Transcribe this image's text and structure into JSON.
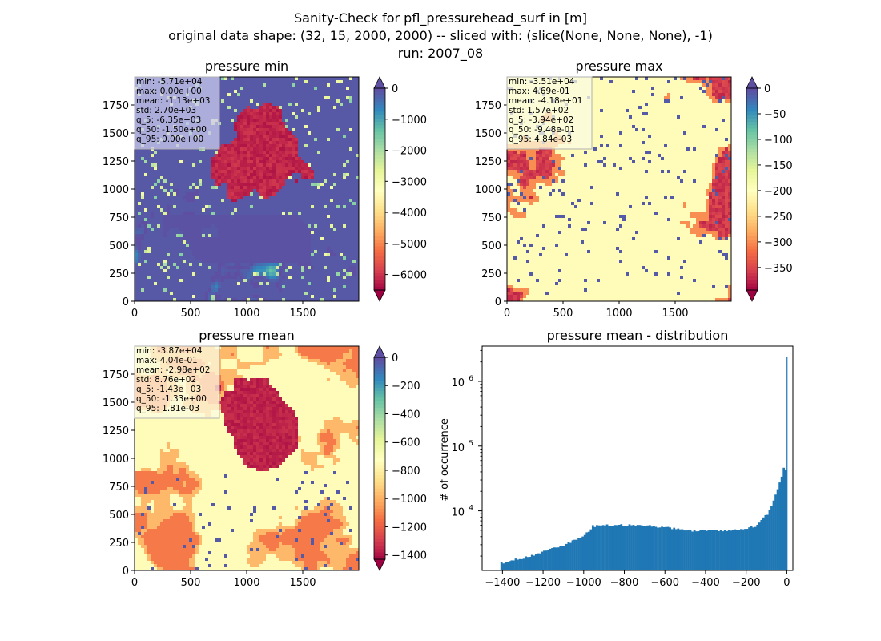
{
  "figure": {
    "suptitle": [
      "Sanity-Check for pfl_pressurehead_surf in [m]",
      "original data shape: (32, 15, 2000, 2000) -- sliced with: (slice(None, None, None), -1)",
      "run: 2007_08"
    ]
  },
  "chart_data": [
    {
      "type": "heatmap",
      "title": "pressure min",
      "colormap": "Spectral",
      "colorbar_extend": "both",
      "xlim": [
        0,
        2000
      ],
      "ylim": [
        0,
        2000
      ],
      "xticks": [
        0,
        500,
        1000,
        1500
      ],
      "yticks": [
        0,
        250,
        500,
        750,
        1000,
        1250,
        1500,
        1750
      ],
      "clim": [
        -6500,
        0
      ],
      "colorbar_ticks": [
        0,
        -1000,
        -2000,
        -3000,
        -4000,
        -5000,
        -6000
      ],
      "stats": [
        "min: -5.71e+04",
        "max: 0.00e+00",
        "mean: -1.13e+03",
        "std: 2.70e+03",
        "q_5: -6.35e+03",
        "q_50: -1.50e+00",
        "q_95: 0.00e+00"
      ],
      "stats_box_color": "#c9c9ee"
    },
    {
      "type": "heatmap",
      "title": "pressure max",
      "colormap": "Spectral",
      "colorbar_extend": "both",
      "xlim": [
        0,
        2000
      ],
      "ylim": [
        0,
        2000
      ],
      "xticks": [
        0,
        500,
        1000,
        1500
      ],
      "yticks": [
        0,
        250,
        500,
        750,
        1000,
        1250,
        1500,
        1750
      ],
      "clim": [
        -394,
        0
      ],
      "colorbar_ticks": [
        0,
        -50,
        -100,
        -150,
        -200,
        -250,
        -300,
        -350
      ],
      "stats": [
        "min: -3.51e+04",
        "max: 4.69e-01",
        "mean: -4.18e+01",
        "std: 1.57e+02",
        "q_5: -3.94e+02",
        "q_50: -9.48e-01",
        "q_95: 4.84e-03"
      ],
      "stats_box_color": "#fbfbe0"
    },
    {
      "type": "heatmap",
      "title": "pressure mean",
      "colormap": "Spectral",
      "colorbar_extend": "both",
      "xlim": [
        0,
        2000
      ],
      "ylim": [
        0,
        2000
      ],
      "xticks": [
        0,
        500,
        1000,
        1500
      ],
      "yticks": [
        0,
        250,
        500,
        750,
        1000,
        1250,
        1500,
        1750
      ],
      "clim": [
        -1430,
        0
      ],
      "colorbar_ticks": [
        0,
        -200,
        -400,
        -600,
        -800,
        -1000,
        -1200,
        -1400
      ],
      "stats": [
        "min: -3.87e+04",
        "max: 4.04e-01",
        "mean: -2.98e+02",
        "std: 8.76e+02",
        "q_5: -1.43e+03",
        "q_50: -1.33e+00",
        "q_95: 1.81e-03"
      ],
      "stats_box_color": "#fbfbe0"
    },
    {
      "type": "bar",
      "title": "pressure mean - distribution",
      "ylabel": "# of occurrence",
      "xlabel": "",
      "yscale": "log",
      "color": "#1f77b4",
      "xlim": [
        -1500,
        30
      ],
      "ylim": [
        1200,
        3500000
      ],
      "xticks": [
        -1400,
        -1200,
        -1000,
        -800,
        -600,
        -400,
        -200,
        0
      ],
      "xtick_labels": [
        "−1400",
        "−1200",
        "−1000",
        "−800",
        "−600",
        "−400",
        "−200",
        "0"
      ],
      "yticks": [
        10000,
        100000,
        1000000
      ],
      "ytick_labels": [
        [
          "10",
          "4"
        ],
        [
          "10",
          "5"
        ],
        [
          "10",
          "6"
        ]
      ],
      "bin_width": 10,
      "x": [
        -1400,
        -1300,
        -1200,
        -1100,
        -1050,
        -1000,
        -960,
        -900,
        -800,
        -700,
        -600,
        -500,
        -400,
        -300,
        -250,
        -200,
        -150,
        -100,
        -80,
        -60,
        -40,
        -30,
        -20,
        -10,
        0
      ],
      "y": [
        1600,
        1900,
        2350,
        3000,
        3500,
        4200,
        5800,
        6000,
        6000,
        5900,
        5600,
        5000,
        4900,
        5000,
        5100,
        5300,
        6000,
        9000,
        12000,
        18000,
        27000,
        35000,
        48000,
        42000,
        2400000
      ]
    }
  ]
}
